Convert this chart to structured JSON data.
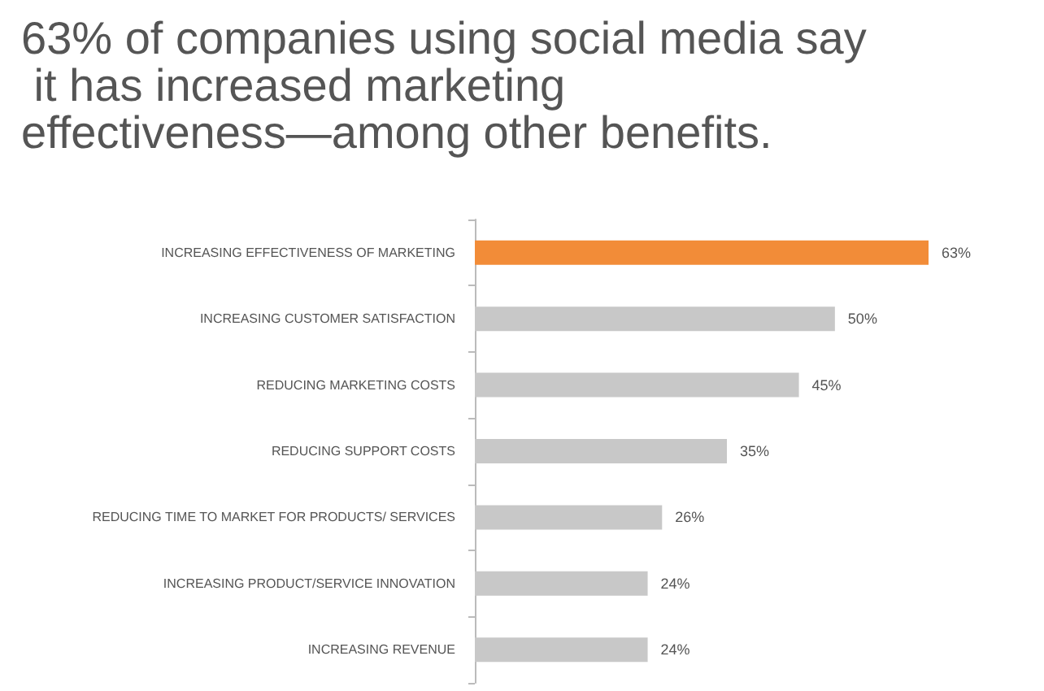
{
  "chart_data": {
    "type": "bar",
    "orientation": "horizontal",
    "title": "63% of companies using social media say it has increased marketing effectiveness—among other benefits.",
    "categories": [
      "INCREASING EFFECTIVENESS OF MARKETING",
      "INCREASING CUSTOMER SATISFACTION",
      "REDUCING MARKETING COSTS",
      "REDUCING SUPPORT COSTS",
      "REDUCING TIME TO MARKET FOR PRODUCTS/ SERVICES",
      "INCREASING PRODUCT/SERVICE INNOVATION",
      "INCREASING REVENUE"
    ],
    "values": [
      63,
      50,
      45,
      35,
      26,
      24,
      24
    ],
    "colors": [
      "#f28c38",
      "#c8c8c8",
      "#c8c8c8",
      "#c8c8c8",
      "#c8c8c8",
      "#c8c8c8",
      "#c8c8c8"
    ],
    "value_labels": [
      "63%",
      "50%",
      "45%",
      "35%",
      "26%",
      "24%",
      "24%"
    ]
  }
}
